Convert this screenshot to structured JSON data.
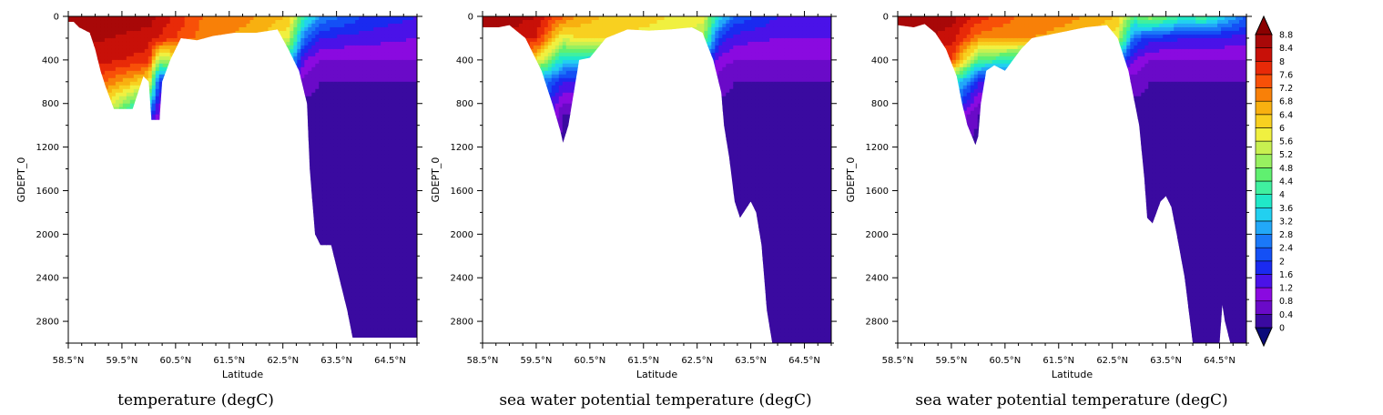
{
  "chart_data": [
    {
      "type": "heatmap",
      "title": "temperature (degC)",
      "xlabel": "Latitude",
      "ylabel": "GDEPT_0",
      "xlim": [
        58.5,
        65.0
      ],
      "ylim": [
        3000,
        0
      ],
      "x_tick_labels": [
        "58.5°N",
        "59.5°N",
        "60.5°N",
        "61.5°N",
        "62.5°N",
        "63.5°N",
        "64.5°N"
      ],
      "x_ticks": [
        58.5,
        59.5,
        60.5,
        61.5,
        62.5,
        63.5,
        64.5
      ],
      "y_tick_labels": [
        "0",
        "400",
        "800",
        "1200",
        "1600",
        "2000",
        "2400",
        "2800"
      ],
      "y_ticks": [
        0,
        400,
        800,
        1200,
        1600,
        2000,
        2400,
        2800
      ],
      "bottom_depth_profile": [
        [
          58.5,
          50
        ],
        [
          58.6,
          50
        ],
        [
          58.7,
          100
        ],
        [
          58.9,
          150
        ],
        [
          59.0,
          300
        ],
        [
          59.1,
          500
        ],
        [
          59.2,
          650
        ],
        [
          59.35,
          850
        ],
        [
          59.5,
          850
        ],
        [
          59.7,
          850
        ],
        [
          59.8,
          700
        ],
        [
          59.9,
          550
        ],
        [
          60.0,
          600
        ],
        [
          60.05,
          950
        ],
        [
          60.2,
          950
        ],
        [
          60.25,
          600
        ],
        [
          60.4,
          400
        ],
        [
          60.6,
          200
        ],
        [
          60.9,
          220
        ],
        [
          61.2,
          180
        ],
        [
          61.6,
          150
        ],
        [
          62.0,
          150
        ],
        [
          62.4,
          120
        ],
        [
          62.6,
          300
        ],
        [
          62.8,
          500
        ],
        [
          62.95,
          800
        ],
        [
          63.0,
          1400
        ],
        [
          63.1,
          2000
        ],
        [
          63.2,
          2100
        ],
        [
          63.4,
          2100
        ],
        [
          63.5,
          2300
        ],
        [
          63.6,
          2500
        ],
        [
          63.7,
          2700
        ],
        [
          63.8,
          2950
        ],
        [
          65.0,
          2950
        ]
      ],
      "temperature_layers": [
        {
          "depth": 0,
          "values": [
            [
              58.5,
              8.8
            ],
            [
              60.0,
              8.6
            ],
            [
              61.0,
              7.2
            ],
            [
              62.0,
              6.8
            ],
            [
              62.6,
              6.4
            ],
            [
              62.9,
              4.0
            ],
            [
              63.2,
              2.8
            ],
            [
              64.0,
              2.0
            ],
            [
              65.0,
              1.6
            ]
          ]
        },
        {
          "depth": 200,
          "values": [
            [
              58.5,
              8.6
            ],
            [
              60.0,
              8.2
            ],
            [
              61.0,
              7.0
            ],
            [
              62.0,
              6.6
            ],
            [
              62.6,
              5.6
            ],
            [
              62.9,
              2.4
            ],
            [
              63.2,
              1.6
            ],
            [
              64.0,
              1.4
            ],
            [
              65.0,
              1.2
            ]
          ]
        },
        {
          "depth": 400,
          "values": [
            [
              58.5,
              8.4
            ],
            [
              60.0,
              7.8
            ],
            [
              60.2,
              5.0
            ],
            [
              61.0,
              6.8
            ],
            [
              62.0,
              6.4
            ],
            [
              62.6,
              3.6
            ],
            [
              62.9,
              1.2
            ],
            [
              63.2,
              0.8
            ],
            [
              64.0,
              0.8
            ],
            [
              65.0,
              0.8
            ]
          ]
        },
        {
          "depth": 600,
          "values": [
            [
              58.5,
              8.2
            ],
            [
              60.0,
              6.0
            ],
            [
              60.2,
              2.0
            ],
            [
              62.6,
              1.2
            ],
            [
              62.9,
              0.6
            ],
            [
              63.2,
              0.4
            ],
            [
              64.0,
              0.4
            ],
            [
              65.0,
              0.4
            ]
          ]
        },
        {
          "depth": 900,
          "values": [
            [
              58.5,
              8.0
            ],
            [
              60.0,
              2.4
            ],
            [
              60.2,
              0.8
            ],
            [
              62.9,
              0.2
            ],
            [
              63.2,
              0.2
            ],
            [
              65.0,
              0.2
            ]
          ]
        },
        {
          "depth": 1200,
          "values": [
            [
              58.5,
              0.2
            ],
            [
              62.9,
              0.0
            ],
            [
              65.0,
              0.0
            ]
          ]
        },
        {
          "depth": 3000,
          "values": [
            [
              58.5,
              0.0
            ],
            [
              65.0,
              0.0
            ]
          ]
        }
      ]
    },
    {
      "type": "heatmap",
      "title": "sea water potential temperature (degC)",
      "xlabel": "Latitude",
      "ylabel": "GDEPT_0",
      "xlim": [
        58.5,
        65.0
      ],
      "ylim": [
        3000,
        0
      ],
      "x_tick_labels": [
        "58.5°N",
        "59.5°N",
        "60.5°N",
        "61.5°N",
        "62.5°N",
        "63.5°N",
        "64.5°N"
      ],
      "x_ticks": [
        58.5,
        59.5,
        60.5,
        61.5,
        62.5,
        63.5,
        64.5
      ],
      "y_tick_labels": [
        "0",
        "400",
        "800",
        "1200",
        "1600",
        "2000",
        "2400",
        "2800"
      ],
      "y_ticks": [
        0,
        400,
        800,
        1200,
        1600,
        2000,
        2400,
        2800
      ],
      "bottom_depth_profile": [
        [
          58.5,
          100
        ],
        [
          58.8,
          100
        ],
        [
          59.0,
          80
        ],
        [
          59.3,
          200
        ],
        [
          59.6,
          500
        ],
        [
          59.8,
          800
        ],
        [
          59.95,
          1050
        ],
        [
          60.0,
          1160
        ],
        [
          60.1,
          1000
        ],
        [
          60.2,
          700
        ],
        [
          60.3,
          400
        ],
        [
          60.5,
          380
        ],
        [
          60.8,
          200
        ],
        [
          61.2,
          120
        ],
        [
          61.6,
          130
        ],
        [
          62.0,
          120
        ],
        [
          62.4,
          100
        ],
        [
          62.6,
          150
        ],
        [
          62.8,
          400
        ],
        [
          62.95,
          700
        ],
        [
          63.0,
          1000
        ],
        [
          63.1,
          1300
        ],
        [
          63.2,
          1700
        ],
        [
          63.3,
          1850
        ],
        [
          63.5,
          1700
        ],
        [
          63.6,
          1800
        ],
        [
          63.7,
          2100
        ],
        [
          63.8,
          2700
        ],
        [
          63.9,
          3000
        ],
        [
          65.0,
          3000
        ]
      ],
      "temperature_layers": [
        {
          "depth": 0,
          "values": [
            [
              58.5,
              8.8
            ],
            [
              59.5,
              8.4
            ],
            [
              60.2,
              6.8
            ],
            [
              61.0,
              6.2
            ],
            [
              62.0,
              6.0
            ],
            [
              62.6,
              5.8
            ],
            [
              62.9,
              3.6
            ],
            [
              63.2,
              2.4
            ],
            [
              64.0,
              1.6
            ],
            [
              65.0,
              1.6
            ]
          ]
        },
        {
          "depth": 200,
          "values": [
            [
              58.5,
              8.6
            ],
            [
              59.5,
              8.0
            ],
            [
              60.0,
              5.6
            ],
            [
              60.2,
              6.0
            ],
            [
              61.0,
              6.0
            ],
            [
              62.0,
              5.8
            ],
            [
              62.6,
              5.2
            ],
            [
              62.9,
              2.0
            ],
            [
              63.2,
              1.4
            ],
            [
              64.0,
              1.2
            ],
            [
              65.0,
              1.2
            ]
          ]
        },
        {
          "depth": 400,
          "values": [
            [
              58.5,
              8.4
            ],
            [
              59.5,
              6.0
            ],
            [
              60.0,
              3.6
            ],
            [
              62.6,
              2.4
            ],
            [
              62.9,
              1.0
            ],
            [
              63.2,
              0.8
            ],
            [
              64.0,
              0.8
            ],
            [
              65.0,
              0.8
            ]
          ]
        },
        {
          "depth": 600,
          "values": [
            [
              58.5,
              8.0
            ],
            [
              59.7,
              2.4
            ],
            [
              60.0,
              1.6
            ],
            [
              62.9,
              0.6
            ],
            [
              63.2,
              0.4
            ],
            [
              65.0,
              0.4
            ]
          ]
        },
        {
          "depth": 900,
          "values": [
            [
              58.5,
              6.0
            ],
            [
              59.9,
              0.8
            ],
            [
              60.0,
              0.4
            ],
            [
              62.9,
              0.2
            ],
            [
              65.0,
              0.2
            ]
          ]
        },
        {
          "depth": 1200,
          "values": [
            [
              58.5,
              0.4
            ],
            [
              62.9,
              0.0
            ],
            [
              65.0,
              0.0
            ]
          ]
        },
        {
          "depth": 3000,
          "values": [
            [
              58.5,
              0.0
            ],
            [
              65.0,
              0.0
            ]
          ]
        }
      ]
    },
    {
      "type": "heatmap",
      "title": "sea water potential temperature (degC)",
      "xlabel": "Latitude",
      "ylabel": "GDEPT_0",
      "xlim": [
        58.5,
        65.0
      ],
      "ylim": [
        3000,
        0
      ],
      "x_tick_labels": [
        "58.5°N",
        "59.5°N",
        "60.5°N",
        "61.5°N",
        "62.5°N",
        "63.5°N",
        "64.5°N"
      ],
      "x_ticks": [
        58.5,
        59.5,
        60.5,
        61.5,
        62.5,
        63.5,
        64.5
      ],
      "y_tick_labels": [
        "0",
        "400",
        "800",
        "1200",
        "1600",
        "2000",
        "2400",
        "2800"
      ],
      "y_ticks": [
        0,
        400,
        800,
        1200,
        1600,
        2000,
        2400,
        2800
      ],
      "bottom_depth_profile": [
        [
          58.5,
          80
        ],
        [
          58.8,
          100
        ],
        [
          59.0,
          70
        ],
        [
          59.2,
          150
        ],
        [
          59.4,
          300
        ],
        [
          59.6,
          550
        ],
        [
          59.7,
          800
        ],
        [
          59.8,
          1000
        ],
        [
          59.95,
          1180
        ],
        [
          60.0,
          1100
        ],
        [
          60.05,
          800
        ],
        [
          60.15,
          500
        ],
        [
          60.3,
          450
        ],
        [
          60.5,
          500
        ],
        [
          60.8,
          300
        ],
        [
          61.0,
          200
        ],
        [
          61.5,
          150
        ],
        [
          62.0,
          100
        ],
        [
          62.4,
          80
        ],
        [
          62.6,
          200
        ],
        [
          62.8,
          500
        ],
        [
          63.0,
          1000
        ],
        [
          63.1,
          1500
        ],
        [
          63.15,
          1850
        ],
        [
          63.25,
          1900
        ],
        [
          63.4,
          1700
        ],
        [
          63.5,
          1650
        ],
        [
          63.6,
          1750
        ],
        [
          63.7,
          2000
        ],
        [
          63.85,
          2400
        ],
        [
          63.95,
          2800
        ],
        [
          64.0,
          3000
        ],
        [
          64.5,
          3000
        ],
        [
          64.55,
          2650
        ],
        [
          64.6,
          2800
        ],
        [
          64.7,
          3000
        ],
        [
          65.0,
          3000
        ]
      ],
      "temperature_layers": [
        {
          "depth": 0,
          "values": [
            [
              58.5,
              8.8
            ],
            [
              59.5,
              8.6
            ],
            [
              60.2,
              7.6
            ],
            [
              61.0,
              7.0
            ],
            [
              62.0,
              6.8
            ],
            [
              62.6,
              6.4
            ],
            [
              62.9,
              4.4
            ],
            [
              63.2,
              5.2
            ],
            [
              63.8,
              4.0
            ],
            [
              64.2,
              4.4
            ],
            [
              65.0,
              2.4
            ]
          ]
        },
        {
          "depth": 200,
          "values": [
            [
              58.5,
              8.6
            ],
            [
              59.5,
              8.2
            ],
            [
              60.0,
              7.0
            ],
            [
              61.0,
              6.8
            ],
            [
              62.0,
              6.6
            ],
            [
              62.6,
              5.6
            ],
            [
              62.9,
              2.4
            ],
            [
              63.2,
              1.8
            ],
            [
              64.0,
              1.6
            ],
            [
              65.0,
              1.4
            ]
          ]
        },
        {
          "depth": 400,
          "values": [
            [
              58.5,
              8.4
            ],
            [
              59.5,
              7.6
            ],
            [
              60.0,
              4.4
            ],
            [
              62.6,
              2.4
            ],
            [
              62.9,
              1.2
            ],
            [
              63.2,
              0.8
            ],
            [
              64.0,
              0.8
            ],
            [
              65.0,
              0.8
            ]
          ]
        },
        {
          "depth": 600,
          "values": [
            [
              58.5,
              8.2
            ],
            [
              59.7,
              3.2
            ],
            [
              60.0,
              1.6
            ],
            [
              62.9,
              0.6
            ],
            [
              63.2,
              0.4
            ],
            [
              65.0,
              0.4
            ]
          ]
        },
        {
          "depth": 900,
          "values": [
            [
              58.5,
              6.0
            ],
            [
              59.8,
              0.8
            ],
            [
              60.0,
              0.4
            ],
            [
              62.9,
              0.2
            ],
            [
              65.0,
              0.2
            ]
          ]
        },
        {
          "depth": 1200,
          "values": [
            [
              58.5,
              0.4
            ],
            [
              62.9,
              0.0
            ],
            [
              65.0,
              0.0
            ]
          ]
        },
        {
          "depth": 3000,
          "values": [
            [
              58.5,
              0.0
            ],
            [
              65.0,
              0.0
            ]
          ]
        }
      ]
    }
  ],
  "colorbar": {
    "levels": [
      0,
      0.4,
      0.8,
      1.2,
      1.6,
      2,
      2.4,
      2.8,
      3.2,
      3.6,
      4,
      4.4,
      4.8,
      5.2,
      5.6,
      6,
      6.4,
      6.8,
      7.2,
      7.6,
      8,
      8.4,
      8.8
    ],
    "labels": [
      "0",
      "0.4",
      "0.8",
      "1.2",
      "1.6",
      "2",
      "2.4",
      "2.8",
      "3.2",
      "3.6",
      "4",
      "4.4",
      "4.8",
      "5.2",
      "5.6",
      "6",
      "6.4",
      "6.8",
      "7.2",
      "7.6",
      "8",
      "8.4",
      "8.8"
    ],
    "colors": [
      "#0a0a7a",
      "#3a0aa0",
      "#6a0ac8",
      "#8a0ae0",
      "#4a12e8",
      "#1a2af0",
      "#1450f5",
      "#1a78f8",
      "#22a8f8",
      "#22d0f0",
      "#20e8c8",
      "#40f0a0",
      "#60f070",
      "#98f060",
      "#c8f050",
      "#f0f040",
      "#f8d020",
      "#f8b010",
      "#f88008",
      "#f85008",
      "#e82a08",
      "#c81008",
      "#a80808",
      "#8a0000"
    ],
    "extend": "both"
  }
}
